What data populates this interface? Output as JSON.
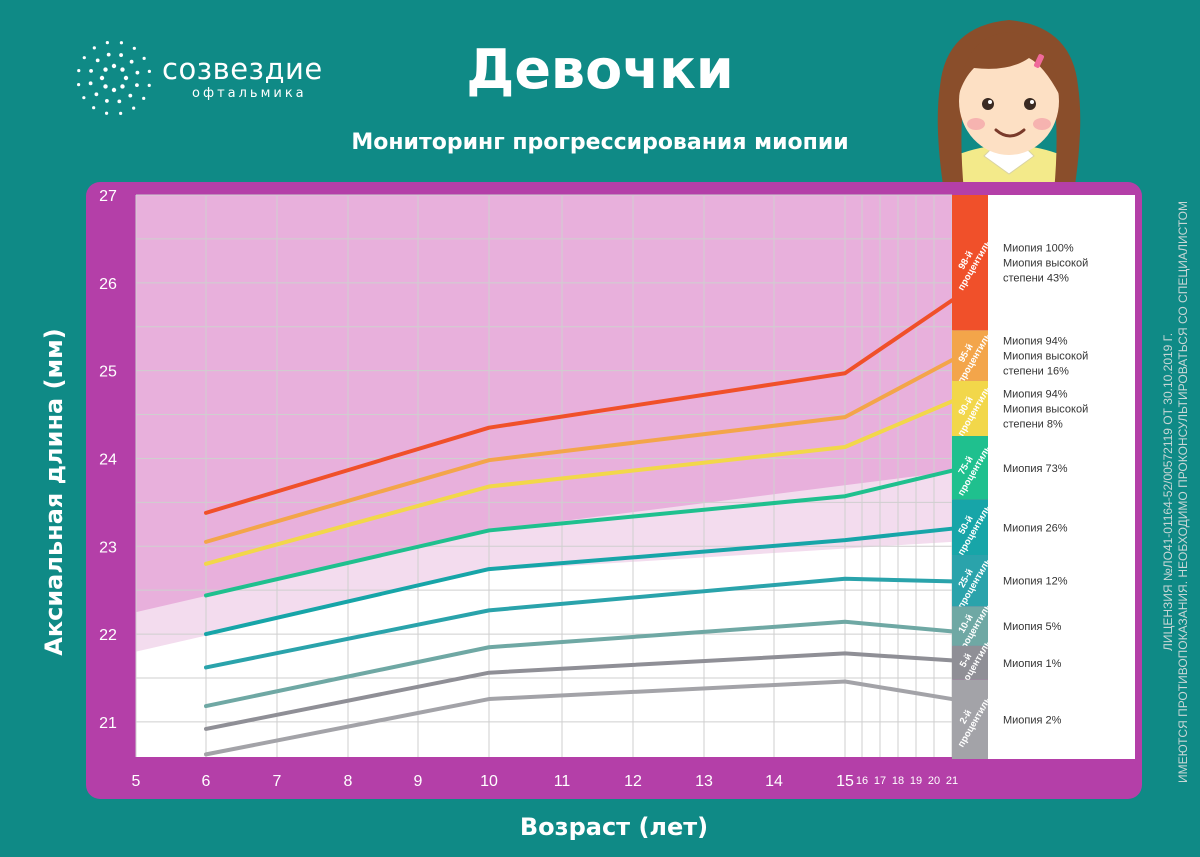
{
  "brand": {
    "name": "созвездие",
    "sub": "офтальмика"
  },
  "header": {
    "title": "Девочки",
    "subtitle": "Мониторинг прогрессирования миопии"
  },
  "license": {
    "line1": "ЛИЦЕНЗИЯ №ЛО41-01164-52/00572119 ОТ 30.10.2019 Г.",
    "line2": "ИМЕЮТСЯ ПРОТИВОПОКАЗАНИЯ. НЕОБХОДИМО ПРОКОНСУЛЬТИРОВАТЬСЯ СО СПЕЦИАЛИСТОМ"
  },
  "colors": {
    "background": "#0f8a86",
    "frame": "#b43fa8",
    "zone_pink": "#e8b0dc",
    "zone_light": "#f3dcee"
  },
  "chart_data": {
    "type": "line",
    "title": "Мониторинг прогрессирования миопии",
    "xlabel": "Возраст (лет)",
    "ylabel": "Аксиальная длина (мм)",
    "ylim": [
      20.6,
      27
    ],
    "xlim": [
      5,
      21
    ],
    "x_ticks": [
      "5",
      "6",
      "7",
      "8",
      "9",
      "10",
      "11",
      "12",
      "13",
      "14",
      "15"
    ],
    "x_ticks_compressed": [
      "16",
      "17",
      "18",
      "19",
      "20",
      "21"
    ],
    "y_ticks": [
      "21",
      "22",
      "23",
      "24",
      "25",
      "26",
      "27"
    ],
    "grid": true,
    "x": [
      6,
      10,
      15,
      21
    ],
    "series": [
      {
        "name": "98-й процентиль",
        "band": "98-й\nпроцентиль",
        "color": "#f0502a",
        "values": [
          23.38,
          24.35,
          24.97,
          25.8
        ],
        "legend": [
          "Миопия 100%",
          "Миопия высокой",
          "степени 43%"
        ]
      },
      {
        "name": "95-й процентиль",
        "band": "95-й\nпроцентиль",
        "color": "#f3a54a",
        "values": [
          23.05,
          23.98,
          24.47,
          25.12
        ],
        "legend": [
          "Миопия 94%",
          "Миопия высокой",
          "степени 16%"
        ]
      },
      {
        "name": "90-й процентиль",
        "band": "90-й\nпроцентиль",
        "color": "#f2d74a",
        "values": [
          22.8,
          23.68,
          24.13,
          24.65
        ],
        "legend": [
          "Миопия 94%",
          "Миопия высокой",
          "степени 8%"
        ]
      },
      {
        "name": "75-й процентиль",
        "band": "75-й\nпроцентиль",
        "color": "#1fc08e",
        "values": [
          22.44,
          23.18,
          23.57,
          23.86
        ],
        "legend": [
          "Миопия 73%"
        ]
      },
      {
        "name": "50-й процентиль",
        "band": "50-й\nпроцентиль",
        "color": "#17a5a8",
        "values": [
          22.0,
          22.74,
          23.07,
          23.2
        ],
        "legend": [
          "Миопия 26%"
        ]
      },
      {
        "name": "25-й процентиль",
        "band": "25-й\nпроцентиль",
        "color": "#2aa3ab",
        "values": [
          21.62,
          22.27,
          22.63,
          22.6
        ],
        "legend": [
          "Миопия 12%"
        ]
      },
      {
        "name": "10-й процентиль",
        "band": "10-й\nпроцентиль",
        "color": "#6fa8a4",
        "values": [
          21.18,
          21.85,
          22.14,
          22.03
        ],
        "legend": [
          "Миопия 5%"
        ]
      },
      {
        "name": "5-й процентиль",
        "band": "5-й\nпроцентиль",
        "color": "#8f8f96",
        "values": [
          20.92,
          21.56,
          21.78,
          21.7
        ],
        "legend": [
          "Миопия 1%"
        ]
      },
      {
        "name": "2-й процентиль",
        "band": "2-й\nпроцентиль",
        "color": "#a3a3a8",
        "values": [
          20.63,
          21.26,
          21.46,
          21.26
        ],
        "legend": [
          "Миопия 2%"
        ]
      }
    ]
  }
}
